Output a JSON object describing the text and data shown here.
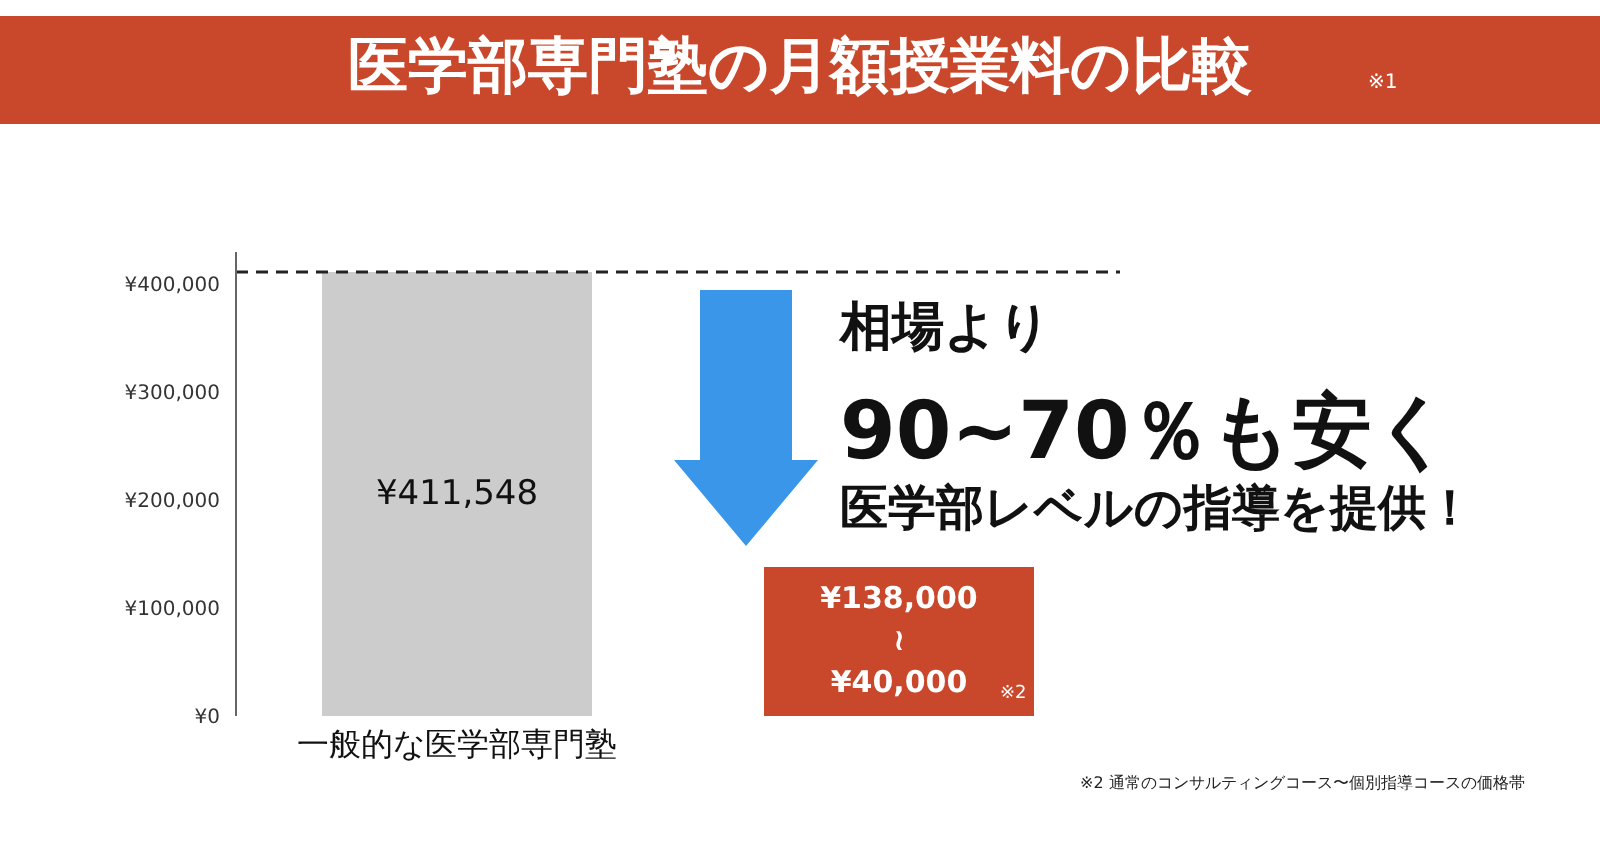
{
  "chart_data": {
    "type": "bar",
    "title": "医学部専門塾の月額授業料の比較",
    "categories": [
      "一般的な医学部専門塾",
      null
    ],
    "values": [
      411548,
      138000
    ],
    "colors": [
      "#cccccc",
      "#c9472a"
    ],
    "value_labels": [
      "¥411,548",
      "¥138,000\n≀\n¥40,000"
    ],
    "ylim": [
      0,
      430000
    ],
    "yticks": [
      {
        "value": 0,
        "label": "¥0"
      },
      {
        "value": 100000,
        "label": "¥100,000"
      },
      {
        "value": 200000,
        "label": "¥200,000"
      },
      {
        "value": 300000,
        "label": "¥300,000"
      },
      {
        "value": 400000,
        "label": "¥400,000"
      }
    ],
    "ref_lines": [
      {
        "axis": "y",
        "value": 411548,
        "label": null,
        "color": "#222222",
        "line_style": "dashed"
      }
    ],
    "grid": false,
    "legend": false,
    "annotations": [
      "※1",
      "相場より",
      "90~70％も安く",
      "医学部レベルの指導を提供！",
      "※2",
      "※2 通常のコンサルティングコース〜個別指導コースの価格帯"
    ]
  }
}
